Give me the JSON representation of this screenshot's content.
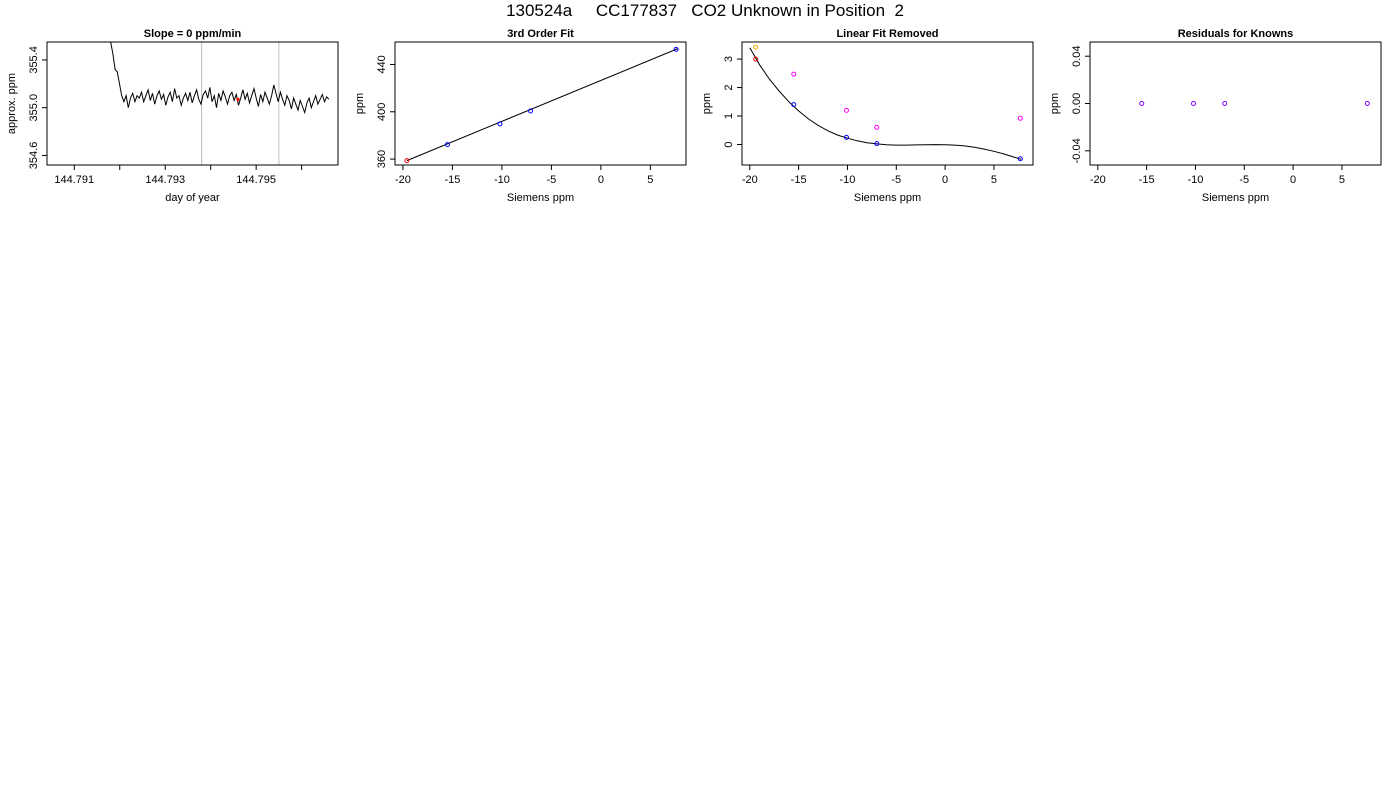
{
  "suptitle": "130524a     CC177837   CO2 Unknown in Position  2",
  "colors": {
    "line": "#000000",
    "frame": "#000000",
    "vline": "#bebebe",
    "blue": "#0000ff",
    "red": "#ff0000",
    "magenta": "#ff00ff",
    "orange": "#ffa500",
    "purple": "#8000ff"
  },
  "chart_data": [
    {
      "type": "line",
      "title": "Slope =  0  ppm/min",
      "xlabel": "day of year",
      "ylabel": "approx. ppm",
      "xlim": [
        144.7904,
        144.7968
      ],
      "ylim": [
        354.52,
        355.55
      ],
      "xticks": [
        144.791,
        144.792,
        144.793,
        144.794,
        144.795,
        144.796
      ],
      "xtick_labels": [
        "144.791",
        "",
        "144.793",
        "",
        "144.795",
        ""
      ],
      "yticks": [
        354.6,
        355.0,
        355.4
      ],
      "ytick_labels": [
        "354.6",
        "355.0",
        "355.4"
      ],
      "vlines": [
        144.7938,
        144.7955
      ],
      "highlight_point": {
        "x": 144.7946,
        "y": 355.07,
        "color": "red"
      },
      "series": [
        {
          "x_start": 144.7918,
          "x_end": 144.7966,
          "values": [
            355.55,
            355.45,
            355.32,
            355.3,
            355.2,
            355.1,
            355.05,
            355.1,
            355.0,
            355.08,
            355.12,
            355.05,
            355.1,
            355.08,
            355.13,
            355.05,
            355.1,
            355.15,
            355.06,
            355.12,
            355.03,
            355.1,
            355.14,
            355.07,
            355.11,
            355.02,
            355.09,
            355.13,
            355.05,
            355.16,
            355.08,
            355.1,
            355.02,
            355.08,
            355.12,
            355.06,
            355.13,
            355.04,
            355.1,
            355.15,
            355.07,
            355.03,
            355.11,
            355.14,
            355.08,
            355.17,
            355.05,
            355.1,
            355.0,
            355.12,
            355.06,
            355.14,
            355.09,
            355.03,
            355.1,
            355.13,
            355.06,
            355.11,
            355.02,
            355.08,
            355.15,
            355.07,
            355.12,
            355.04,
            355.1,
            355.16,
            355.08,
            355.01,
            355.11,
            355.05,
            355.13,
            355.08,
            355.03,
            355.1,
            355.19,
            355.12,
            355.05,
            355.13,
            355.07,
            355.02,
            355.1,
            355.06,
            354.99,
            355.08,
            355.03,
            354.98,
            355.06,
            355.01,
            354.96,
            355.04,
            355.08,
            355.0,
            355.05,
            355.1,
            355.03,
            355.07,
            355.11,
            355.05,
            355.09,
            355.07
          ]
        }
      ]
    },
    {
      "type": "scatter",
      "title": "3rd Order Fit",
      "xlabel": "Siemens ppm",
      "ylabel": "ppm",
      "xlim": [
        -20.8,
        8.6
      ],
      "ylim": [
        355,
        459
      ],
      "xticks": [
        -20,
        -15,
        -10,
        -5,
        0,
        5
      ],
      "xtick_labels": [
        "-20",
        "-15",
        "-10",
        "-5",
        "0",
        "5"
      ],
      "yticks": [
        360,
        400,
        440
      ],
      "ytick_labels": [
        "360",
        "400",
        "440"
      ],
      "fit_line": {
        "x": [
          -19.6,
          7.8
        ],
        "y": [
          358.7,
          453.5
        ]
      },
      "points": [
        {
          "x": -19.6,
          "y": 358.7,
          "color": "red"
        },
        {
          "x": -15.5,
          "y": 372.2,
          "color": "blue"
        },
        {
          "x": -10.2,
          "y": 389.8,
          "color": "blue"
        },
        {
          "x": -7.1,
          "y": 400.7,
          "color": "blue"
        },
        {
          "x": 7.6,
          "y": 452.8,
          "color": "blue"
        }
      ]
    },
    {
      "type": "scatter",
      "title": "Linear Fit Removed",
      "xlabel": "Siemens ppm",
      "ylabel": "ppm",
      "xlim": [
        -20.8,
        9.0
      ],
      "ylim": [
        -0.72,
        3.6
      ],
      "xticks": [
        -20,
        -15,
        -10,
        -5,
        0,
        5
      ],
      "xtick_labels": [
        "-20",
        "-15",
        "-10",
        "-5",
        "0",
        "5"
      ],
      "yticks": [
        0,
        1,
        2,
        3
      ],
      "ytick_labels": [
        "0",
        "1",
        "2",
        "3"
      ],
      "fit_curve": {
        "x": [
          -20,
          -19,
          -18,
          -17,
          -16,
          -15,
          -14,
          -13,
          -12,
          -11,
          -10,
          -9,
          -8,
          -7,
          -6,
          -5,
          -4,
          -3,
          -2,
          -1,
          0,
          1,
          2,
          3,
          4,
          5,
          6,
          7,
          7.8
        ],
        "y": [
          3.4,
          2.8,
          2.3,
          1.88,
          1.5,
          1.18,
          0.9,
          0.67,
          0.48,
          0.33,
          0.22,
          0.13,
          0.06,
          0.02,
          -0.01,
          -0.02,
          -0.02,
          -0.015,
          -0.01,
          -0.005,
          -0.01,
          -0.02,
          -0.05,
          -0.1,
          -0.16,
          -0.24,
          -0.33,
          -0.44,
          -0.52
        ]
      },
      "points": [
        {
          "x": -19.4,
          "y": 3.42,
          "color": "orange"
        },
        {
          "x": -19.4,
          "y": 3.0,
          "color": "red"
        },
        {
          "x": -15.5,
          "y": 2.47,
          "color": "magenta"
        },
        {
          "x": -15.5,
          "y": 1.4,
          "color": "blue"
        },
        {
          "x": -10.1,
          "y": 1.2,
          "color": "magenta"
        },
        {
          "x": -10.1,
          "y": 0.25,
          "color": "blue"
        },
        {
          "x": -7.0,
          "y": 0.6,
          "color": "magenta"
        },
        {
          "x": -7.0,
          "y": 0.03,
          "color": "blue"
        },
        {
          "x": 7.7,
          "y": 0.92,
          "color": "magenta"
        },
        {
          "x": 7.7,
          "y": -0.5,
          "color": "blue"
        }
      ]
    },
    {
      "type": "scatter",
      "title": "Residuals for Knowns",
      "xlabel": "Siemens ppm",
      "ylabel": "ppm",
      "xlim": [
        -20.8,
        9.0
      ],
      "ylim": [
        -0.052,
        0.052
      ],
      "xticks": [
        -20,
        -15,
        -10,
        -5,
        0,
        5
      ],
      "xtick_labels": [
        "-20",
        "-15",
        "-10",
        "-5",
        "0",
        "5"
      ],
      "yticks": [
        -0.04,
        0.0,
        0.04
      ],
      "ytick_labels": [
        "-0.04",
        "0.00",
        "0.04"
      ],
      "points": [
        {
          "x": -15.5,
          "y": 0.0,
          "color": "purple"
        },
        {
          "x": -10.2,
          "y": 0.0,
          "color": "purple"
        },
        {
          "x": -7.0,
          "y": 0.0,
          "color": "purple"
        },
        {
          "x": 7.6,
          "y": 0.0,
          "color": "purple"
        }
      ]
    }
  ]
}
